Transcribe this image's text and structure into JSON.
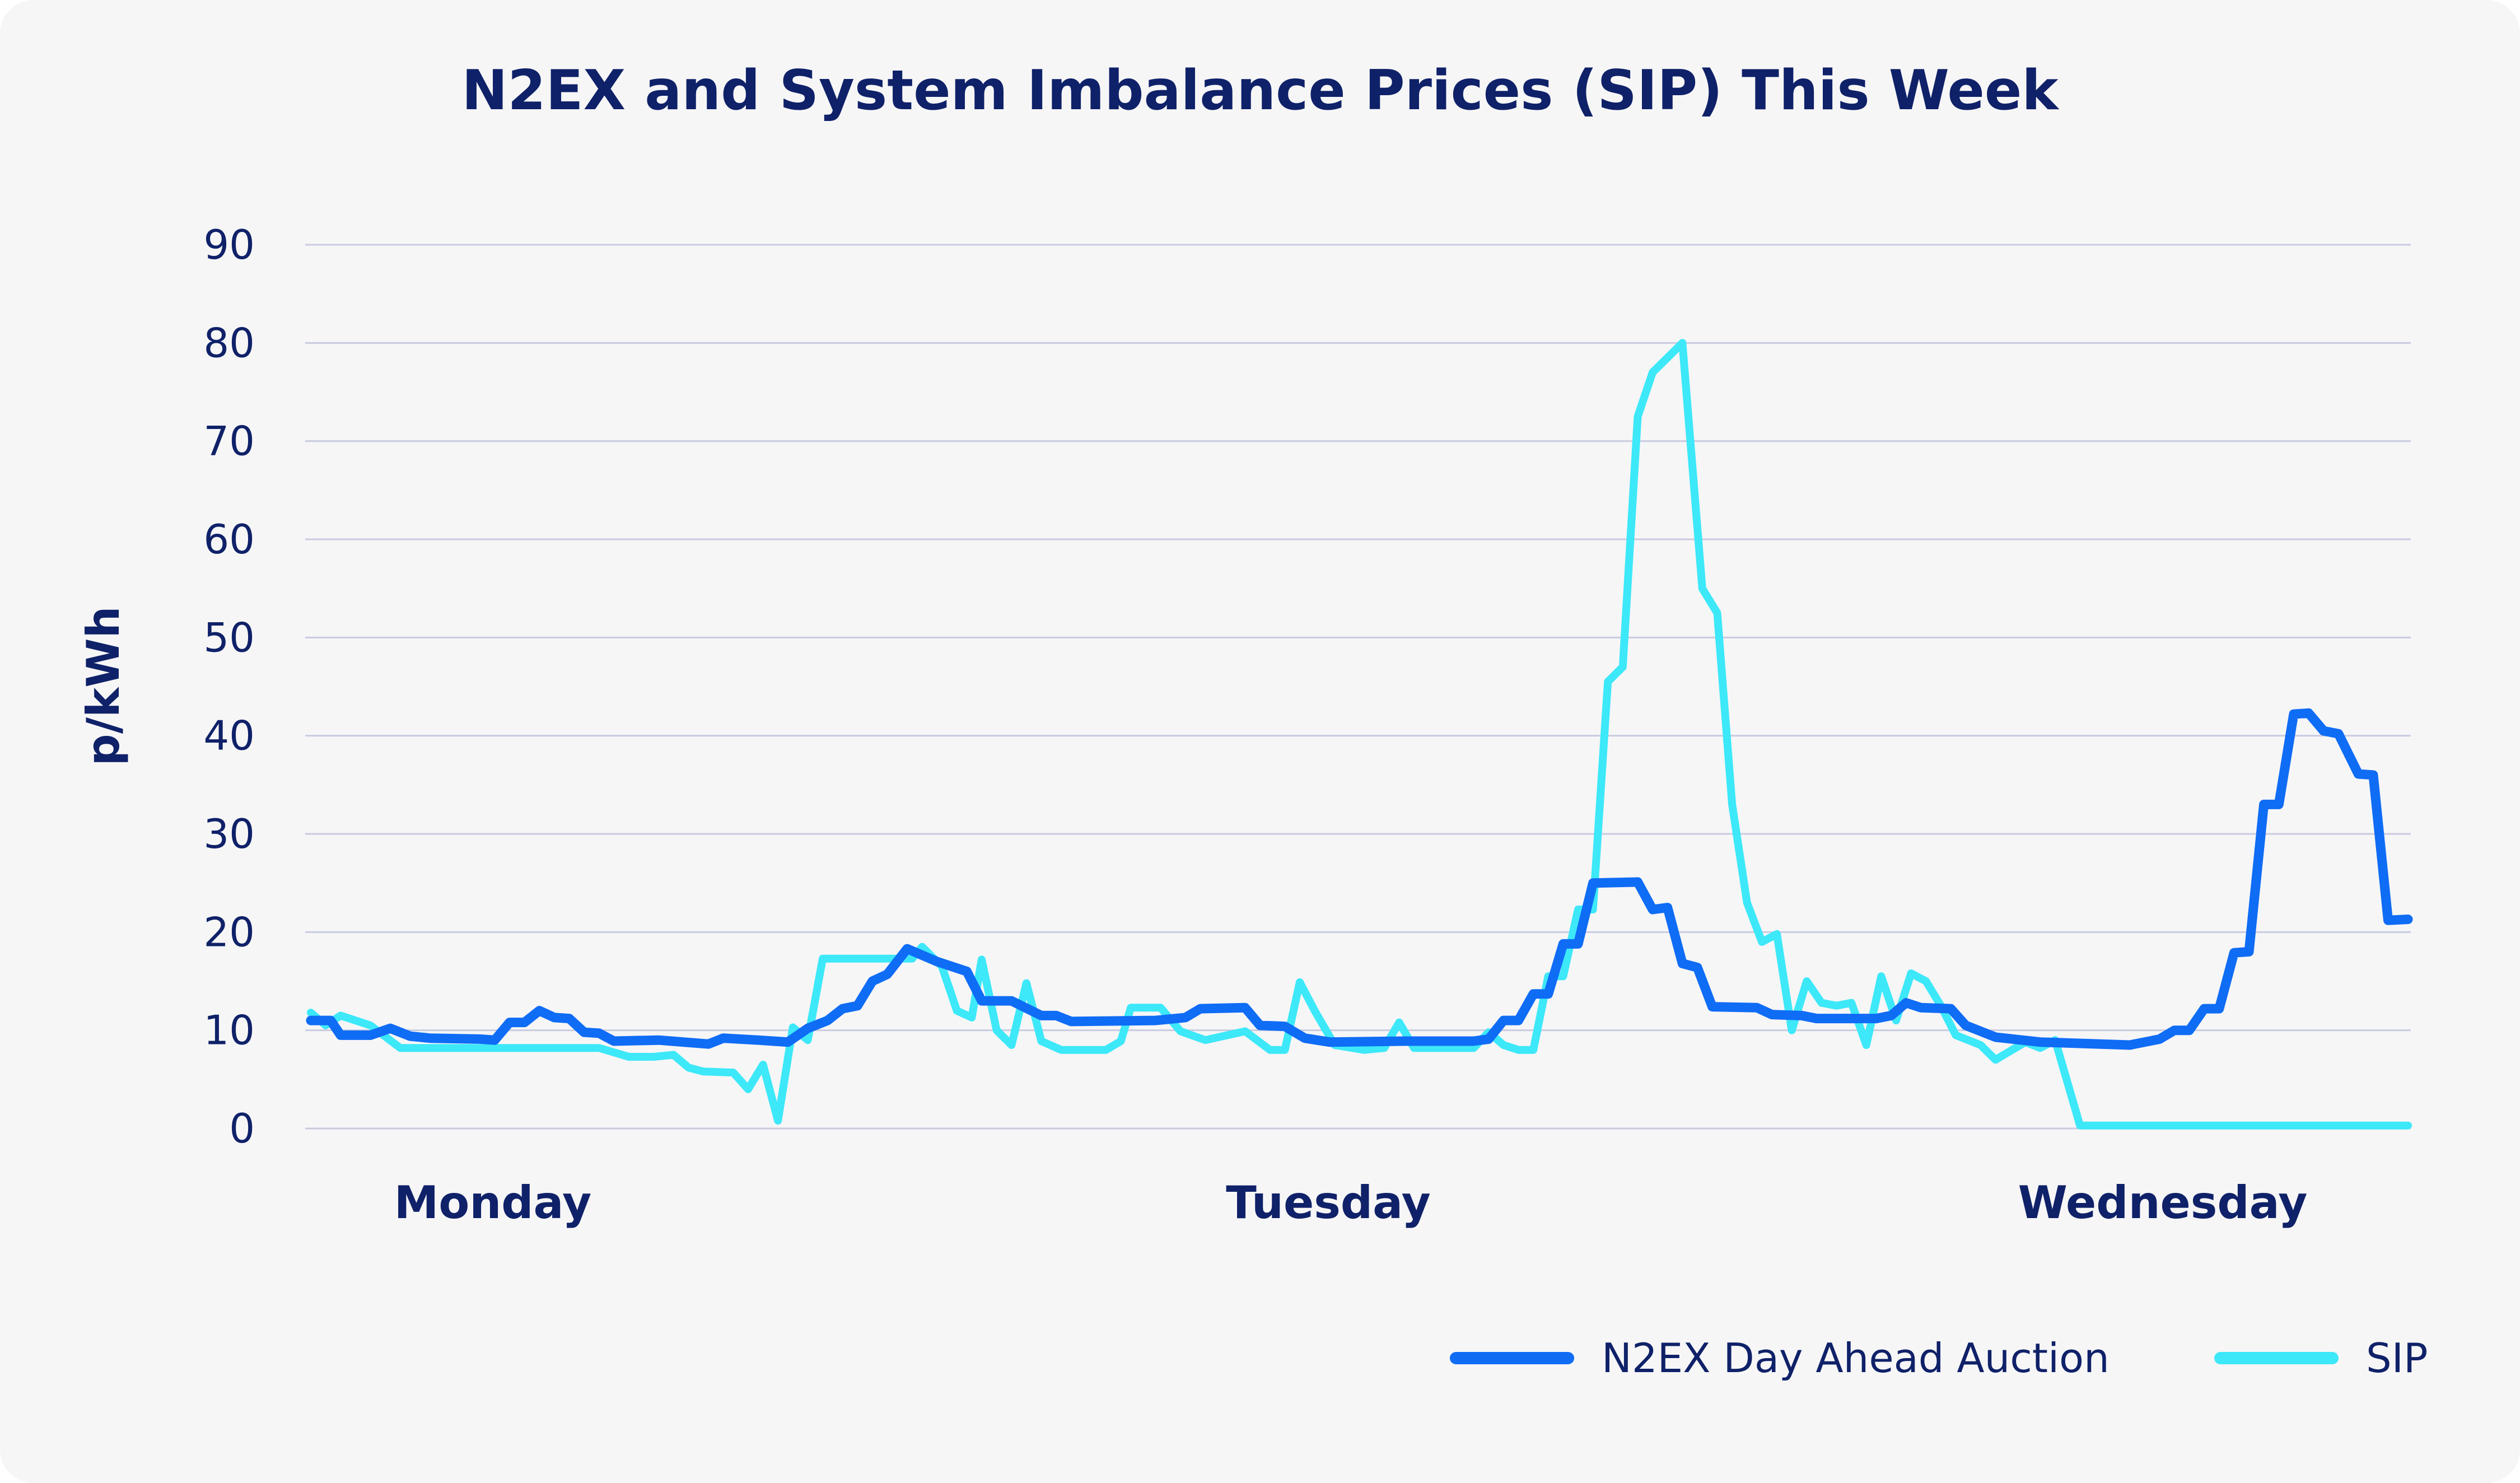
{
  "chart_data": {
    "type": "line",
    "title": "N2EX and System Imbalance Prices (SIP) This Week",
    "ylabel": "p/kWh",
    "ylim": [
      0,
      90
    ],
    "yticks": [
      0,
      10,
      20,
      30,
      40,
      50,
      60,
      70,
      80,
      90
    ],
    "grid": true,
    "legend_position": "bottom-right",
    "x_categories": [
      "Monday",
      "Tuesday",
      "Wednesday"
    ],
    "series": [
      {
        "name": "N2EX Day Ahead Auction",
        "color": "#0f6cf5",
        "values": [
          [
            0,
            11
          ],
          [
            0.4,
            11
          ],
          [
            0.6,
            9.5
          ],
          [
            1.2,
            9.5
          ],
          [
            1.6,
            10.2
          ],
          [
            2.0,
            9.4
          ],
          [
            2.4,
            9.2
          ],
          [
            3.4,
            9.1
          ],
          [
            3.7,
            9.0
          ],
          [
            4.0,
            10.8
          ],
          [
            4.3,
            10.8
          ],
          [
            4.6,
            12.0
          ],
          [
            4.9,
            11.3
          ],
          [
            5.2,
            11.2
          ],
          [
            5.5,
            9.8
          ],
          [
            5.8,
            9.7
          ],
          [
            6.1,
            8.9
          ],
          [
            7.0,
            9.0
          ],
          [
            8.0,
            8.6
          ],
          [
            8.3,
            9.2
          ],
          [
            9.0,
            9.0
          ],
          [
            9.6,
            8.8
          ],
          [
            10.0,
            10.2
          ],
          [
            10.4,
            11.0
          ],
          [
            10.7,
            12.2
          ],
          [
            11.0,
            12.5
          ],
          [
            11.3,
            15.0
          ],
          [
            11.6,
            15.7
          ],
          [
            12.0,
            18.3
          ],
          [
            12.6,
            17.0
          ],
          [
            13.2,
            16.0
          ],
          [
            13.5,
            13.0
          ],
          [
            14.1,
            13.0
          ],
          [
            14.7,
            11.5
          ],
          [
            15.0,
            11.5
          ],
          [
            15.3,
            10.9
          ],
          [
            17.0,
            11.0
          ],
          [
            17.6,
            11.3
          ],
          [
            17.9,
            12.2
          ],
          [
            18.8,
            12.3
          ],
          [
            19.1,
            10.5
          ],
          [
            19.6,
            10.4
          ],
          [
            20.0,
            9.2
          ],
          [
            20.5,
            8.8
          ],
          [
            22.0,
            8.9
          ],
          [
            23.4,
            8.9
          ],
          [
            23.7,
            9.1
          ],
          [
            24.0,
            11.0
          ],
          [
            24.3,
            11.0
          ],
          [
            24.6,
            13.7
          ],
          [
            24.9,
            13.7
          ],
          [
            25.2,
            18.8
          ],
          [
            25.5,
            18.8
          ],
          [
            25.8,
            25.0
          ],
          [
            26.7,
            25.1
          ],
          [
            27.0,
            22.3
          ],
          [
            27.3,
            22.5
          ],
          [
            27.6,
            16.8
          ],
          [
            27.9,
            16.4
          ],
          [
            28.2,
            12.4
          ],
          [
            29.1,
            12.3
          ],
          [
            29.4,
            11.6
          ],
          [
            30.0,
            11.5
          ],
          [
            30.3,
            11.2
          ],
          [
            31.5,
            11.2
          ],
          [
            31.8,
            11.5
          ],
          [
            32.1,
            12.8
          ],
          [
            32.4,
            12.3
          ],
          [
            33.0,
            12.2
          ],
          [
            33.3,
            10.5
          ],
          [
            33.9,
            9.3
          ],
          [
            34.8,
            8.8
          ],
          [
            36.6,
            8.5
          ],
          [
            37.2,
            9.1
          ],
          [
            37.5,
            10.0
          ],
          [
            37.8,
            10.0
          ],
          [
            38.1,
            12.2
          ],
          [
            38.4,
            12.2
          ],
          [
            38.7,
            17.9
          ],
          [
            39.0,
            18.0
          ],
          [
            39.3,
            33.0
          ],
          [
            39.6,
            33.0
          ],
          [
            39.9,
            42.2
          ],
          [
            40.2,
            42.3
          ],
          [
            40.5,
            40.5
          ],
          [
            40.8,
            40.2
          ],
          [
            41.2,
            36.1
          ],
          [
            41.5,
            36.0
          ],
          [
            41.8,
            21.2
          ],
          [
            42.2,
            21.3
          ]
        ]
      },
      {
        "name": "SIP",
        "color": "#3de8f8",
        "values": [
          [
            0,
            11.8
          ],
          [
            0.3,
            10.5
          ],
          [
            0.6,
            11.5
          ],
          [
            1.2,
            10.5
          ],
          [
            1.8,
            8.2
          ],
          [
            3.7,
            8.2
          ],
          [
            4.6,
            8.2
          ],
          [
            5.8,
            8.2
          ],
          [
            6.4,
            7.3
          ],
          [
            6.9,
            7.3
          ],
          [
            7.3,
            7.5
          ],
          [
            7.6,
            6.2
          ],
          [
            7.9,
            5.8
          ],
          [
            8.5,
            5.7
          ],
          [
            8.8,
            4.0
          ],
          [
            9.1,
            6.5
          ],
          [
            9.4,
            0.8
          ],
          [
            9.7,
            10.3
          ],
          [
            10.0,
            9.0
          ],
          [
            10.3,
            17.3
          ],
          [
            11.2,
            17.3
          ],
          [
            12.1,
            17.3
          ],
          [
            12.3,
            18.5
          ],
          [
            12.7,
            16.5
          ],
          [
            13.0,
            12.0
          ],
          [
            13.3,
            11.3
          ],
          [
            13.5,
            17.2
          ],
          [
            13.8,
            10.0
          ],
          [
            14.1,
            8.5
          ],
          [
            14.4,
            14.8
          ],
          [
            14.7,
            8.9
          ],
          [
            15.1,
            8.0
          ],
          [
            15.6,
            8.0
          ],
          [
            16.0,
            8.0
          ],
          [
            16.3,
            8.9
          ],
          [
            16.5,
            12.3
          ],
          [
            17.1,
            12.3
          ],
          [
            17.5,
            9.9
          ],
          [
            18.0,
            9.0
          ],
          [
            18.8,
            9.9
          ],
          [
            19.3,
            8.0
          ],
          [
            19.6,
            8.0
          ],
          [
            19.9,
            14.9
          ],
          [
            20.2,
            12.0
          ],
          [
            20.6,
            8.5
          ],
          [
            21.2,
            8.0
          ],
          [
            21.6,
            8.2
          ],
          [
            21.9,
            10.8
          ],
          [
            22.2,
            8.2
          ],
          [
            22.8,
            8.2
          ],
          [
            23.4,
            8.2
          ],
          [
            23.7,
            9.8
          ],
          [
            24.0,
            8.5
          ],
          [
            24.3,
            8.0
          ],
          [
            24.6,
            8.0
          ],
          [
            24.9,
            15.5
          ],
          [
            25.2,
            15.5
          ],
          [
            25.5,
            22.3
          ],
          [
            25.8,
            22.3
          ],
          [
            26.1,
            45.5
          ],
          [
            26.4,
            47.0
          ],
          [
            26.7,
            72.5
          ],
          [
            27.0,
            77.0
          ],
          [
            27.6,
            80.0
          ],
          [
            28.0,
            55.0
          ],
          [
            28.3,
            52.5
          ],
          [
            28.6,
            33.0
          ],
          [
            28.9,
            23.0
          ],
          [
            29.2,
            19.0
          ],
          [
            29.5,
            19.8
          ],
          [
            29.8,
            10.0
          ],
          [
            30.1,
            15.0
          ],
          [
            30.4,
            12.8
          ],
          [
            30.7,
            12.5
          ],
          [
            31.0,
            12.8
          ],
          [
            31.3,
            8.5
          ],
          [
            31.6,
            15.5
          ],
          [
            31.9,
            11.0
          ],
          [
            32.2,
            15.8
          ],
          [
            32.5,
            15.0
          ],
          [
            32.8,
            12.5
          ],
          [
            33.1,
            9.5
          ],
          [
            33.6,
            8.5
          ],
          [
            33.9,
            7.0
          ],
          [
            34.5,
            8.8
          ],
          [
            34.8,
            8.2
          ],
          [
            35.1,
            9.0
          ],
          [
            35.6,
            0.3
          ],
          [
            42.2,
            0.3
          ]
        ]
      }
    ]
  }
}
